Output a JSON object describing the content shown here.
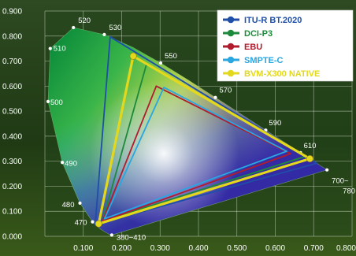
{
  "chart_data": {
    "type": "scatter",
    "title": "",
    "xlabel": "",
    "ylabel": "",
    "xlim": [
      0,
      0.8
    ],
    "ylim": [
      0,
      0.9
    ],
    "grid": true,
    "legend_position": "top-right",
    "x_ticks": [
      "0.100",
      "0.200",
      "0.300",
      "0.400",
      "0.500",
      "0.600",
      "0.700",
      "0.800"
    ],
    "y_ticks": [
      "0.000",
      "0.100",
      "0.200",
      "0.300",
      "0.400",
      "0.500",
      "0.600",
      "0.700",
      "0.800",
      "0.900"
    ],
    "spectral_locus": [
      [
        0.1741,
        0.005
      ],
      [
        0.1738,
        0.0049
      ],
      [
        0.1729,
        0.0048
      ],
      [
        0.1714,
        0.0051
      ],
      [
        0.1689,
        0.0069
      ],
      [
        0.1644,
        0.0109
      ],
      [
        0.1566,
        0.0177
      ],
      [
        0.144,
        0.0297
      ],
      [
        0.1241,
        0.0578
      ],
      [
        0.0913,
        0.1327
      ],
      [
        0.0454,
        0.295
      ],
      [
        0.0082,
        0.5384
      ],
      [
        0.0139,
        0.7502
      ],
      [
        0.0743,
        0.8338
      ],
      [
        0.1547,
        0.8059
      ],
      [
        0.2296,
        0.7543
      ],
      [
        0.3016,
        0.6923
      ],
      [
        0.3731,
        0.6245
      ],
      [
        0.4441,
        0.5547
      ],
      [
        0.5125,
        0.4866
      ],
      [
        0.5752,
        0.4242
      ],
      [
        0.627,
        0.3725
      ],
      [
        0.6658,
        0.334
      ],
      [
        0.6915,
        0.3083
      ],
      [
        0.7079,
        0.292
      ],
      [
        0.719,
        0.2809
      ],
      [
        0.726,
        0.274
      ],
      [
        0.73,
        0.27
      ],
      [
        0.7347,
        0.2653
      ]
    ],
    "wavelength_labels": [
      {
        "text": "380~410",
        "x": 0.1741,
        "y": 0.005
      },
      {
        "text": "470",
        "x": 0.1241,
        "y": 0.0578
      },
      {
        "text": "480",
        "x": 0.0913,
        "y": 0.1327
      },
      {
        "text": "490",
        "x": 0.0454,
        "y": 0.295
      },
      {
        "text": "500",
        "x": 0.0082,
        "y": 0.5384
      },
      {
        "text": "510",
        "x": 0.0139,
        "y": 0.7502
      },
      {
        "text": "520",
        "x": 0.0743,
        "y": 0.8338
      },
      {
        "text": "530",
        "x": 0.1547,
        "y": 0.8059
      },
      {
        "text": "550",
        "x": 0.3016,
        "y": 0.6923
      },
      {
        "text": "570",
        "x": 0.4441,
        "y": 0.5547
      },
      {
        "text": "590",
        "x": 0.5752,
        "y": 0.4242
      },
      {
        "text": "610",
        "x": 0.6658,
        "y": 0.334
      },
      {
        "text": "700~",
        "x": 0.7347,
        "y": 0.2653
      },
      {
        "text": "780",
        "x": 0.7347,
        "y": 0.2653
      }
    ],
    "series": [
      {
        "name": "ITU-R BT.2020",
        "color": "#1f4ea8",
        "width": 1.8,
        "points": [
          [
            0.708,
            0.292
          ],
          [
            0.17,
            0.797
          ],
          [
            0.131,
            0.046
          ]
        ]
      },
      {
        "name": "DCI-P3",
        "color": "#1c8a3a",
        "width": 1.8,
        "points": [
          [
            0.68,
            0.32
          ],
          [
            0.265,
            0.69
          ],
          [
            0.15,
            0.06
          ]
        ]
      },
      {
        "name": "EBU",
        "color": "#b01c2e",
        "width": 1.8,
        "points": [
          [
            0.64,
            0.33
          ],
          [
            0.29,
            0.6
          ],
          [
            0.15,
            0.06
          ]
        ]
      },
      {
        "name": "SMPTE-C",
        "color": "#2aa6e0",
        "width": 1.8,
        "points": [
          [
            0.63,
            0.34
          ],
          [
            0.31,
            0.595
          ],
          [
            0.155,
            0.07
          ]
        ]
      },
      {
        "name": "BVM-X300 NATIVE",
        "color": "#e3d81c",
        "width": 3.2,
        "points": [
          [
            0.69,
            0.31
          ],
          [
            0.23,
            0.72
          ],
          [
            0.14,
            0.05
          ]
        ]
      }
    ]
  }
}
